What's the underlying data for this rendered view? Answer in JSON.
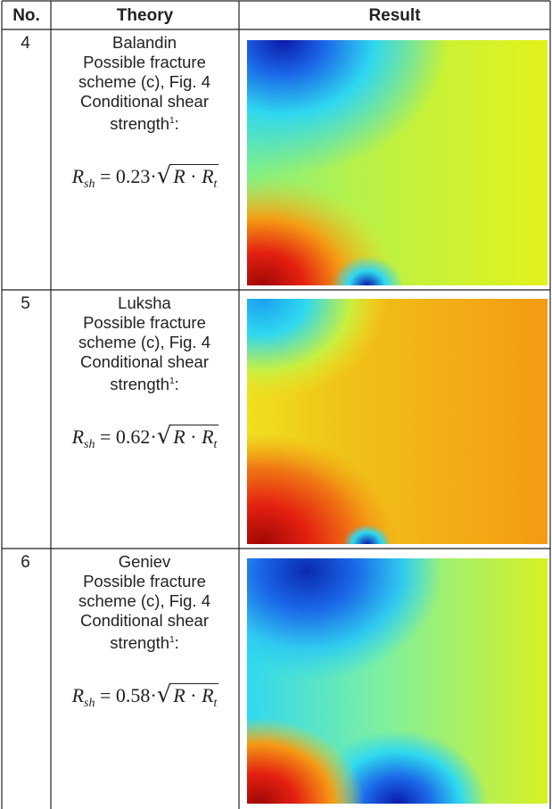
{
  "header": {
    "col_no": "No.",
    "col_theory": "Theory",
    "col_result": "Result"
  },
  "rows": [
    {
      "no": "4",
      "name": "Balandin",
      "scheme_line1": "Possible fracture",
      "scheme_line2": "scheme (c), Fig. 4",
      "cond_line1": "Conditional shear",
      "cond_line2": "strength",
      "footnote": "1",
      "formula": {
        "lhs": "R",
        "lhs_sub": "sh",
        "coef": "0.23",
        "rhs_a": "R",
        "rhs_b": "R",
        "rhs_b_sub": "t"
      },
      "result_image": "heatmap-balandin"
    },
    {
      "no": "5",
      "name": "Luksha",
      "scheme_line1": "Possible fracture",
      "scheme_line2": "scheme (c), Fig. 4",
      "cond_line1": "Conditional shear",
      "cond_line2": "strength",
      "footnote": "1",
      "formula": {
        "lhs": "R",
        "lhs_sub": "sh",
        "coef": "0.62",
        "rhs_a": "R",
        "rhs_b": "R",
        "rhs_b_sub": "t"
      },
      "result_image": "heatmap-luksha"
    },
    {
      "no": "6",
      "name": "Geniev",
      "scheme_line1": "Possible fracture",
      "scheme_line2": "scheme (c), Fig. 4",
      "cond_line1": "Conditional shear",
      "cond_line2": "strength",
      "footnote": "1",
      "formula": {
        "lhs": "R",
        "lhs_sub": "sh",
        "coef": "0.58",
        "rhs_a": "R",
        "rhs_b": "R",
        "rhs_b_sub": "t"
      },
      "result_image": "heatmap-geniev"
    }
  ],
  "colors": {
    "rule": "#222222",
    "jet_blue": "#0a1aa8",
    "jet_cyan": "#2fd8f0",
    "jet_yellow": "#e8f020",
    "jet_orange": "#f59a14",
    "jet_red": "#c80a0a"
  }
}
